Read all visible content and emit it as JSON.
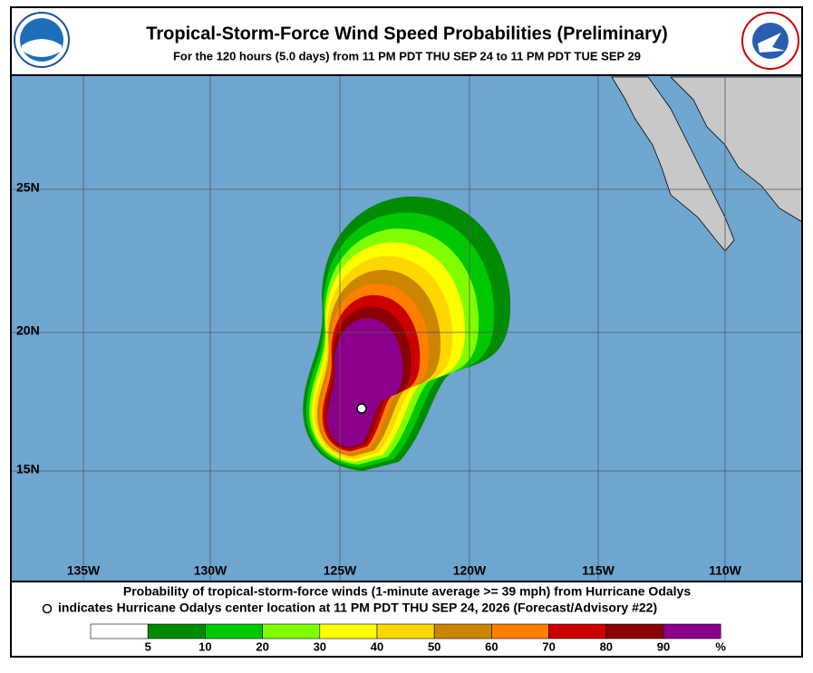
{
  "header": {
    "title": "Tropical-Storm-Force Wind Speed Probabilities (Preliminary)",
    "subtitle": "For the 120 hours (5.0 days) from 11 PM PDT THU SEP 24 to 11 PM PDT TUE SEP 29"
  },
  "map": {
    "lat_labels": [
      "25N",
      "20N",
      "15N"
    ],
    "lon_labels": [
      "135W",
      "130W",
      "125W",
      "120W",
      "115W",
      "110W"
    ]
  },
  "caption": {
    "line1": "Probability of tropical-storm-force winds (1-minute average >= 39 mph) from Hurricane Odalys",
    "line2": "indicates Hurricane Odalys center location at 11 PM PDT THU SEP 24, 2026 (Forecast/Advisory #22)"
  },
  "legend": {
    "colors": [
      "#ffffff",
      "#008b00",
      "#00c800",
      "#80ff00",
      "#ffff00",
      "#ffd700",
      "#cd8500",
      "#ff8000",
      "#cc0000",
      "#8b0000",
      "#8b008b"
    ],
    "labels": [
      "5",
      "10",
      "20",
      "30",
      "40",
      "50",
      "60",
      "70",
      "80",
      "90",
      "%"
    ]
  }
}
